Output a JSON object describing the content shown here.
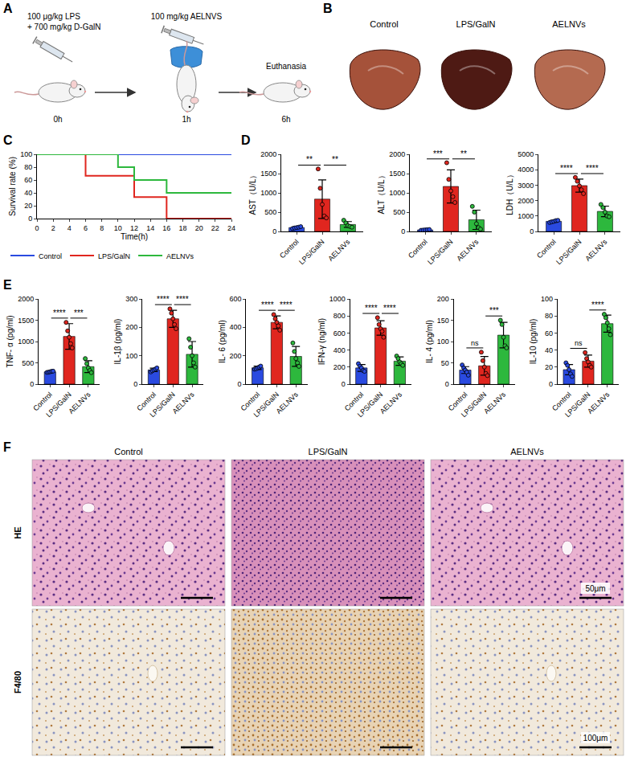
{
  "panels": {
    "A": {
      "label": "A",
      "dose1": "100 μg/kg LPS",
      "dose2": "+ 700 mg/kg D-GalN",
      "treatment": "100 mg/kg AELNVS",
      "endpoint": "Euthanasia",
      "times": [
        "0h",
        "1h",
        "6h"
      ]
    },
    "B": {
      "label": "B",
      "groups": [
        "Control",
        "LPS/GalN",
        "AELNVs"
      ]
    },
    "F": {
      "label": "F",
      "columns": [
        "Control",
        "LPS/GalN",
        "AELNVs"
      ],
      "rows": [
        "HE",
        "F4/80"
      ],
      "scale_bars": [
        "50μm",
        "100μm"
      ]
    }
  },
  "chart_data": [
    {
      "panel": "C",
      "type": "line",
      "line_style": "step",
      "x_label": "Time(h)",
      "y_label": "Survival rate (%)",
      "x": [
        0,
        2,
        4,
        6,
        8,
        10,
        12,
        14,
        16,
        18,
        20,
        22,
        24
      ],
      "series": [
        {
          "name": "Control",
          "color": "#2a4ae0",
          "values": [
            100,
            100,
            100,
            100,
            100,
            100,
            100,
            100,
            100,
            100,
            100,
            100,
            100
          ]
        },
        {
          "name": "LPS/GalN",
          "color": "#e0261f",
          "values": [
            100,
            100,
            100,
            66.7,
            66.7,
            66.7,
            33.3,
            33.3,
            0,
            0,
            0,
            0,
            0
          ]
        },
        {
          "name": "AELNVs",
          "color": "#2db83d",
          "values": [
            100,
            100,
            100,
            100,
            100,
            80,
            60,
            60,
            40,
            40,
            40,
            40,
            40
          ]
        }
      ],
      "xlim": [
        0,
        24
      ],
      "xticks": [
        0,
        2,
        4,
        6,
        8,
        10,
        12,
        14,
        16,
        18,
        20,
        22,
        24
      ],
      "ylim": [
        0,
        100
      ],
      "yticks": [
        0,
        20,
        40,
        60,
        80,
        100
      ],
      "grid": false,
      "legend": "bottom"
    },
    {
      "panel": "D",
      "type": "bar",
      "y_label": "AST（U/L）",
      "categories": [
        "Control",
        "LPS/GalN",
        "AELNVs"
      ],
      "values": [
        100,
        838,
        180
      ],
      "errors": [
        22,
        500,
        75
      ],
      "points": [
        [
          75,
          90,
          100,
          110,
          125
        ],
        [
          1620,
          1120,
          700,
          400,
          350
        ],
        [
          290,
          220,
          150,
          130,
          110
        ]
      ],
      "colors": [
        "#2a4ae0",
        "#e0261f",
        "#2db83d"
      ],
      "ylim": [
        0,
        2000
      ],
      "yticks": [
        0,
        500,
        1000,
        1500,
        2000
      ],
      "significance": [
        {
          "groups": [
            0,
            1
          ],
          "text": "**"
        },
        {
          "groups": [
            1,
            2
          ],
          "text": "**"
        }
      ]
    },
    {
      "panel": "D",
      "type": "bar",
      "y_label": "ALT（U/L）",
      "categories": [
        "Control",
        "LPS/GalN",
        "AELNVs"
      ],
      "values": [
        40,
        1166,
        302
      ],
      "errors": [
        8,
        430,
        250
      ],
      "points": [
        [
          30,
          35,
          40,
          45,
          50
        ],
        [
          1780,
          1350,
          1050,
          900,
          750
        ],
        [
          650,
          500,
          200,
          100,
          60
        ]
      ],
      "colors": [
        "#2a4ae0",
        "#e0261f",
        "#2db83d"
      ],
      "ylim": [
        0,
        2000
      ],
      "yticks": [
        0,
        500,
        1000,
        1500,
        2000
      ],
      "significance": [
        {
          "groups": [
            0,
            1
          ],
          "text": "***"
        },
        {
          "groups": [
            1,
            2
          ],
          "text": "**"
        }
      ]
    },
    {
      "panel": "D",
      "type": "bar",
      "y_label": "LDH（U/L）",
      "categories": [
        "Control",
        "LPS/GalN",
        "AELNVs"
      ],
      "values": [
        654,
        2970,
        1300
      ],
      "errors": [
        60,
        420,
        340
      ],
      "points": [
        [
          580,
          620,
          650,
          700,
          720
        ],
        [
          3500,
          3250,
          2950,
          2700,
          2450
        ],
        [
          1750,
          1550,
          1250,
          1000,
          950
        ]
      ],
      "colors": [
        "#2a4ae0",
        "#e0261f",
        "#2db83d"
      ],
      "ylim": [
        0,
        5000
      ],
      "yticks": [
        0,
        1000,
        2000,
        3000,
        4000,
        5000
      ],
      "significance": [
        {
          "groups": [
            0,
            1
          ],
          "text": "****"
        },
        {
          "groups": [
            1,
            2
          ],
          "text": "****"
        }
      ]
    },
    {
      "panel": "E",
      "type": "bar",
      "y_label": "TNF- α (pg/ml)",
      "categories": [
        "Control",
        "LPS/GalN",
        "AELNVs"
      ],
      "values": [
        290,
        1120,
        410
      ],
      "errors": [
        15,
        300,
        140
      ],
      "points": [
        [
          275,
          280,
          290,
          300,
          305
        ],
        [
          1450,
          1250,
          1100,
          950,
          850
        ],
        [
          600,
          480,
          380,
          320,
          270
        ]
      ],
      "colors": [
        "#2a4ae0",
        "#e0261f",
        "#2db83d"
      ],
      "ylim": [
        0,
        2000
      ],
      "yticks": [
        0,
        500,
        1000,
        1500,
        2000
      ],
      "significance": [
        {
          "groups": [
            0,
            1
          ],
          "text": "****"
        },
        {
          "groups": [
            1,
            2
          ],
          "text": "***"
        }
      ]
    },
    {
      "panel": "E",
      "type": "bar",
      "y_label": "IL-1β (pg/ml)",
      "categories": [
        "Control",
        "LPS/GalN",
        "AELNVs"
      ],
      "values": [
        50,
        230,
        105
      ],
      "errors": [
        6,
        30,
        45
      ],
      "points": [
        [
          43,
          47,
          50,
          53,
          57
        ],
        [
          265,
          250,
          230,
          210,
          195
        ],
        [
          160,
          130,
          100,
          75,
          60
        ]
      ],
      "colors": [
        "#2a4ae0",
        "#e0261f",
        "#2db83d"
      ],
      "ylim": [
        0,
        300
      ],
      "yticks": [
        0,
        100,
        200,
        300
      ],
      "significance": [
        {
          "groups": [
            0,
            1
          ],
          "text": "****"
        },
        {
          "groups": [
            1,
            2
          ],
          "text": "****"
        }
      ]
    },
    {
      "panel": "E",
      "type": "bar",
      "y_label": "IL- 6 (pg/ml)",
      "categories": [
        "Control",
        "LPS/GalN",
        "AELNVs"
      ],
      "values": [
        115,
        435,
        195
      ],
      "errors": [
        12,
        45,
        70
      ],
      "points": [
        [
          105,
          108,
          115,
          120,
          127
        ],
        [
          490,
          460,
          435,
          410,
          380
        ],
        [
          290,
          230,
          180,
          150,
          125
        ]
      ],
      "colors": [
        "#2a4ae0",
        "#e0261f",
        "#2db83d"
      ],
      "ylim": [
        0,
        600
      ],
      "yticks": [
        0,
        200,
        400,
        600
      ],
      "significance": [
        {
          "groups": [
            0,
            1
          ],
          "text": "****"
        },
        {
          "groups": [
            1,
            2
          ],
          "text": "****"
        }
      ]
    },
    {
      "panel": "E",
      "type": "bar",
      "y_label": "IFN-γ (ng/ml)",
      "categories": [
        "Control",
        "LPS/GalN",
        "AELNVs"
      ],
      "values": [
        190,
        660,
        270
      ],
      "errors": [
        40,
        85,
        50
      ],
      "points": [
        [
          240,
          210,
          190,
          160,
          150
        ],
        [
          780,
          700,
          650,
          620,
          550
        ],
        [
          330,
          300,
          260,
          240,
          220
        ]
      ],
      "colors": [
        "#2a4ae0",
        "#e0261f",
        "#2db83d"
      ],
      "ylim": [
        0,
        1000
      ],
      "yticks": [
        0,
        200,
        400,
        600,
        800,
        1000
      ],
      "significance": [
        {
          "groups": [
            0,
            1
          ],
          "text": "****"
        },
        {
          "groups": [
            1,
            2
          ],
          "text": "****"
        }
      ]
    },
    {
      "panel": "E",
      "type": "bar",
      "y_label": "IL- 4 (pg/ml)",
      "categories": [
        "Control",
        "LPS/GalN",
        "AELNVs"
      ],
      "values": [
        33,
        43,
        115
      ],
      "errors": [
        8,
        22,
        30
      ],
      "points": [
        [
          45,
          38,
          33,
          28,
          21
        ],
        [
          75,
          55,
          40,
          25,
          20
        ],
        [
          150,
          140,
          110,
          90,
          85
        ]
      ],
      "colors": [
        "#2a4ae0",
        "#e0261f",
        "#2db83d"
      ],
      "ylim": [
        0,
        200
      ],
      "yticks": [
        0,
        50,
        100,
        150,
        200
      ],
      "significance": [
        {
          "groups": [
            0,
            1
          ],
          "text": "ns"
        },
        {
          "groups": [
            1,
            2
          ],
          "text": "***"
        }
      ]
    },
    {
      "panel": "E",
      "type": "bar",
      "y_label": "IL-10 (pg/ml)",
      "categories": [
        "Control",
        "LPS/GalN",
        "AELNVs"
      ],
      "values": [
        17,
        27,
        71
      ],
      "errors": [
        6,
        7,
        10
      ],
      "points": [
        [
          25,
          22,
          17,
          12,
          9
        ],
        [
          37,
          30,
          26,
          22,
          20
        ],
        [
          82,
          78,
          72,
          65,
          58
        ]
      ],
      "colors": [
        "#2a4ae0",
        "#e0261f",
        "#2db83d"
      ],
      "ylim": [
        0,
        100
      ],
      "yticks": [
        0,
        20,
        40,
        60,
        80,
        100
      ],
      "significance": [
        {
          "groups": [
            0,
            1
          ],
          "text": "ns"
        },
        {
          "groups": [
            1,
            2
          ],
          "text": "****"
        }
      ]
    }
  ]
}
